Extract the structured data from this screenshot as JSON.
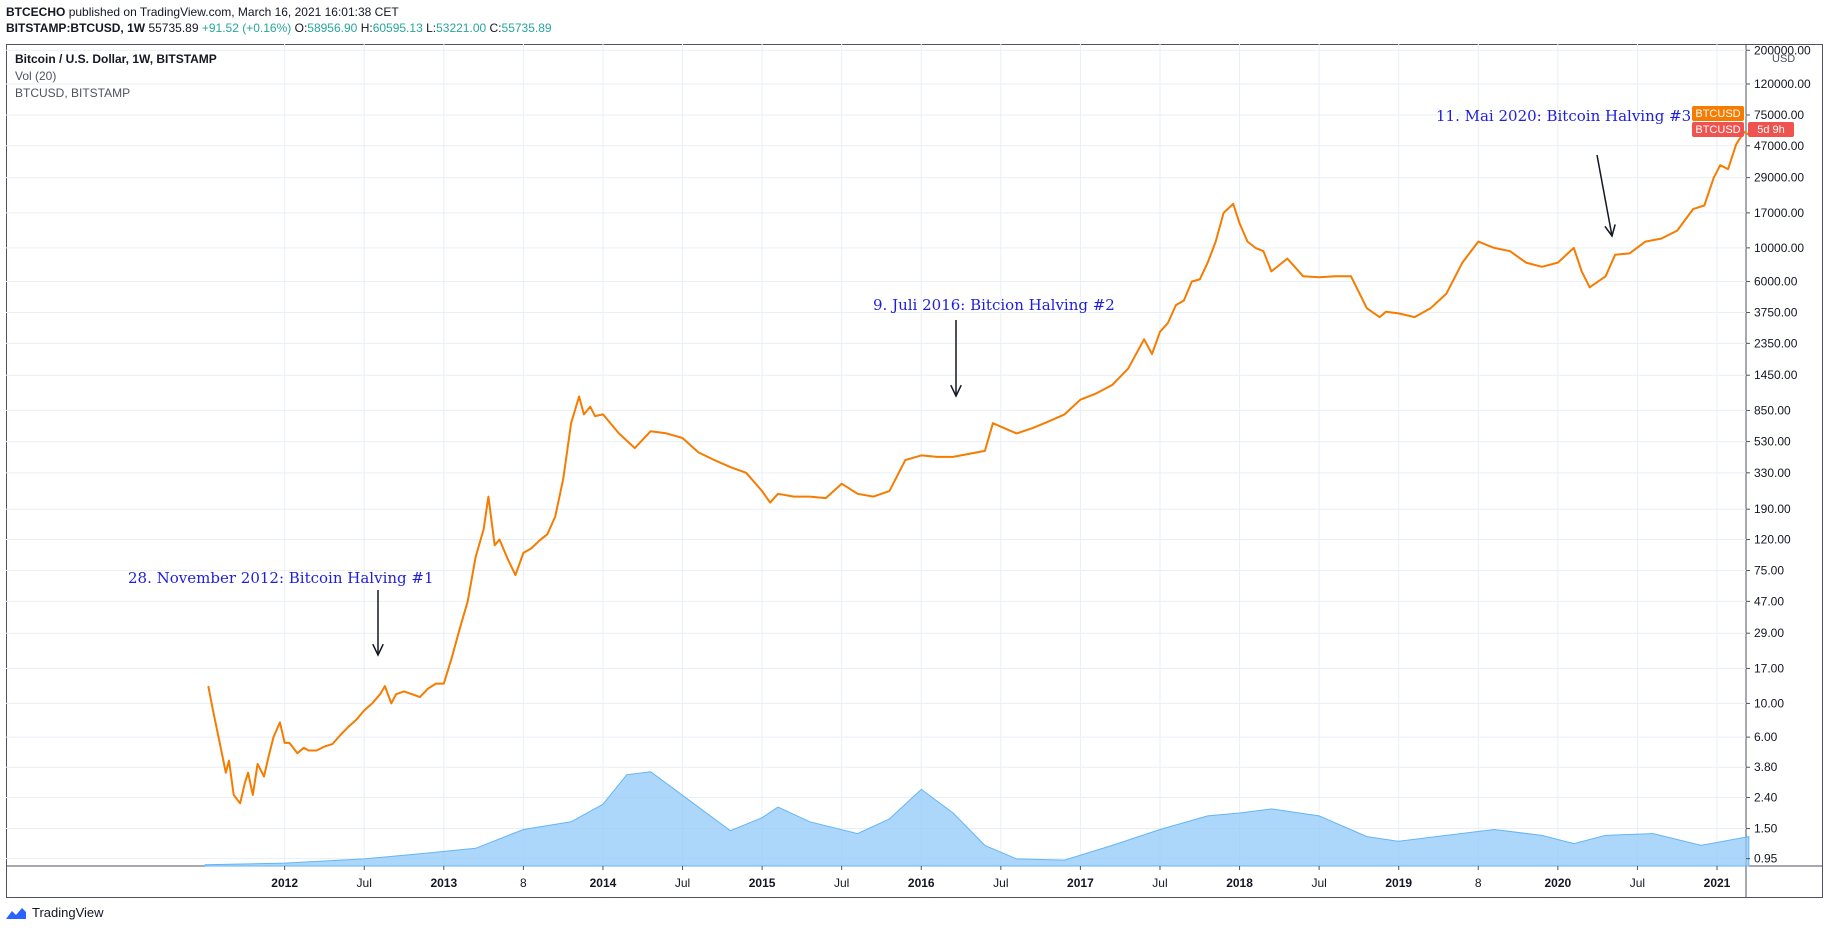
{
  "header": {
    "author": "BTCECHO",
    "published_text": "published on TradingView.com, March 16, 2021 16:01:38 CET"
  },
  "ohlc_bar": {
    "symbol": "BITSTAMP:BTCUSD, 1W",
    "last": "55735.89",
    "change": "+91.52 (+0.16%)",
    "o_label": "O:",
    "o": "58956.90",
    "h_label": "H:",
    "h": "60595.13",
    "l_label": "L:",
    "l": "53221.00",
    "c_label": "C:",
    "c": "55735.89"
  },
  "legend": {
    "line1": "Bitcoin / U.S. Dollar, 1W, BITSTAMP",
    "line2": "Vol (20)",
    "line3": "BTCUSD, BITSTAMP"
  },
  "price_badges": {
    "label1": "BTCUSD",
    "label2": "BTCUSD",
    "countdown": "5d 9h",
    "color1": "#f57c00",
    "color2": "#ef5350"
  },
  "footer": {
    "brand": "TradingView"
  },
  "colors": {
    "price_line": "#f57c00",
    "volume_area": "#90caf9",
    "annotation": "#1f1fdb",
    "grid": "#e9eff5"
  },
  "chart_data": {
    "type": "line",
    "title": "",
    "xlabel": "",
    "ylabel": "",
    "yscale": "log",
    "currency_label": "USD",
    "x_ticks": [
      "2012",
      "Jul",
      "2013",
      "8",
      "2014",
      "Jul",
      "2015",
      "Jul",
      "2016",
      "Jul",
      "2017",
      "Jul",
      "2018",
      "Jul",
      "2019",
      "8",
      "2020",
      "Jul",
      "2021"
    ],
    "y_ticks": [
      "200000.00",
      "120000.00",
      "75000.00",
      "47000.00",
      "29000.00",
      "17000.00",
      "10000.00",
      "6000.00",
      "3750.00",
      "2350.00",
      "1450.00",
      "850.00",
      "530.00",
      "330.00",
      "190.00",
      "120.00",
      "75.00",
      "47.00",
      "29.00",
      "17.00",
      "10.00",
      "6.00",
      "3.80",
      "2.40",
      "1.50",
      "0.95"
    ],
    "series": [
      {
        "type": "line",
        "x": [
          2011.52,
          2011.55,
          2011.6,
          2011.63,
          2011.65,
          2011.68,
          2011.72,
          2011.75,
          2011.77,
          2011.8,
          2011.83,
          2011.87,
          2011.9,
          2011.93,
          2011.97,
          2012.0,
          2012.03,
          2012.08,
          2012.12,
          2012.15,
          2012.2,
          2012.25,
          2012.3,
          2012.35,
          2012.4,
          2012.45,
          2012.5,
          2012.55,
          2012.6,
          2012.63,
          2012.67,
          2012.7,
          2012.75,
          2012.8,
          2012.85,
          2012.9,
          2012.95,
          2013.0,
          2013.05,
          2013.1,
          2013.15,
          2013.2,
          2013.25,
          2013.28,
          2013.32,
          2013.35,
          2013.4,
          2013.45,
          2013.5,
          2013.55,
          2013.6,
          2013.65,
          2013.7,
          2013.75,
          2013.8,
          2013.85,
          2013.88,
          2013.92,
          2013.95,
          2014.0,
          2014.1,
          2014.2,
          2014.3,
          2014.4,
          2014.5,
          2014.6,
          2014.7,
          2014.8,
          2014.9,
          2015.0,
          2015.05,
          2015.1,
          2015.2,
          2015.3,
          2015.4,
          2015.5,
          2015.6,
          2015.7,
          2015.8,
          2015.9,
          2016.0,
          2016.1,
          2016.2,
          2016.3,
          2016.4,
          2016.45,
          2016.52,
          2016.6,
          2016.7,
          2016.8,
          2016.9,
          2017.0,
          2017.1,
          2017.2,
          2017.3,
          2017.4,
          2017.45,
          2017.5,
          2017.55,
          2017.6,
          2017.65,
          2017.7,
          2017.75,
          2017.8,
          2017.85,
          2017.9,
          2017.96,
          2018.0,
          2018.05,
          2018.1,
          2018.15,
          2018.2,
          2018.3,
          2018.4,
          2018.5,
          2018.6,
          2018.7,
          2018.8,
          2018.88,
          2018.92,
          2019.0,
          2019.1,
          2019.2,
          2019.3,
          2019.4,
          2019.5,
          2019.6,
          2019.7,
          2019.8,
          2019.9,
          2020.0,
          2020.1,
          2020.15,
          2020.2,
          2020.3,
          2020.36,
          2020.45,
          2020.55,
          2020.65,
          2020.75,
          2020.85,
          2020.92,
          2020.98,
          2021.02,
          2021.07,
          2021.12,
          2021.17,
          2021.2
        ],
        "y": [
          13,
          9,
          5,
          3.5,
          4.2,
          2.5,
          2.2,
          3,
          3.5,
          2.5,
          4,
          3.3,
          4.5,
          6,
          7.5,
          5.5,
          5.5,
          4.7,
          5.1,
          4.9,
          4.9,
          5.2,
          5.4,
          6.2,
          7,
          7.8,
          9,
          10,
          11.5,
          13,
          10,
          11.5,
          12,
          11.5,
          11,
          12.5,
          13.5,
          13.5,
          20,
          31,
          47,
          92,
          140,
          230,
          110,
          120,
          90,
          70,
          98,
          105,
          118,
          130,
          170,
          300,
          700,
          1050,
          800,
          900,
          780,
          800,
          600,
          480,
          620,
          600,
          560,
          450,
          400,
          360,
          330,
          250,
          210,
          240,
          230,
          230,
          225,
          280,
          240,
          230,
          250,
          400,
          430,
          420,
          420,
          440,
          460,
          700,
          650,
          600,
          650,
          720,
          800,
          1000,
          1100,
          1250,
          1600,
          2500,
          2000,
          2800,
          3200,
          4200,
          4500,
          6000,
          6200,
          8000,
          11000,
          17000,
          19500,
          14500,
          11000,
          10000,
          9500,
          7000,
          8500,
          6500,
          6400,
          6500,
          6500,
          4000,
          3500,
          3800,
          3700,
          3500,
          4000,
          5000,
          8000,
          11000,
          10000,
          9500,
          8000,
          7500,
          8000,
          10000,
          7000,
          5500,
          6500,
          9000,
          9200,
          11000,
          11500,
          13000,
          18000,
          19000,
          29000,
          35000,
          33000,
          48000,
          58000,
          55735
        ]
      }
    ],
    "annotations": [
      {
        "text": "28. November 2012: Bitcoin Halving #1",
        "x": 2012.91,
        "y": 13.5
      },
      {
        "text": "9. Juli 2016: Bitcion Halving #2",
        "x": 2016.52,
        "y": 700
      },
      {
        "text": "11. Mai 2020: Bitcoin Halving #3",
        "x": 2020.36,
        "y": 9000
      }
    ],
    "volume": {
      "x": [
        2011.5,
        2012.0,
        2012.5,
        2012.9,
        2013.2,
        2013.5,
        2013.8,
        2014.0,
        2014.15,
        2014.3,
        2014.5,
        2014.8,
        2015.0,
        2015.1,
        2015.3,
        2015.6,
        2015.8,
        2016.0,
        2016.2,
        2016.4,
        2016.6,
        2016.9,
        2017.2,
        2017.5,
        2017.8,
        2018.0,
        2018.2,
        2018.5,
        2018.8,
        2019.0,
        2019.3,
        2019.6,
        2019.9,
        2020.1,
        2020.3,
        2020.6,
        2020.9,
        2021.2
      ],
      "y": [
        0.02,
        0.05,
        0.12,
        0.22,
        0.3,
        0.62,
        0.75,
        1.05,
        1.55,
        1.6,
        1.2,
        0.6,
        0.82,
        1.0,
        0.75,
        0.55,
        0.8,
        1.3,
        0.9,
        0.35,
        0.12,
        0.1,
        0.35,
        0.62,
        0.85,
        0.9,
        0.97,
        0.85,
        0.5,
        0.42,
        0.52,
        0.62,
        0.52,
        0.38,
        0.52,
        0.55,
        0.35,
        0.5
      ],
      "ylim": [
        0,
        1.8
      ]
    },
    "ylim": [
      0.85,
      220000
    ],
    "xlim": [
      2011.0,
      2021.2
    ],
    "grid": true,
    "legend": "top-left"
  }
}
